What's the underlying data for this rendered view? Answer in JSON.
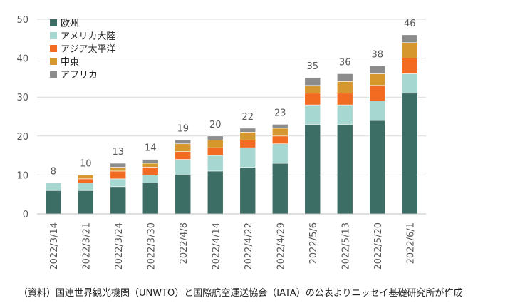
{
  "chart_data": {
    "type": "bar",
    "stacked": true,
    "title": "",
    "xlabel": "",
    "ylabel": "",
    "ylim": [
      0,
      50
    ],
    "yticks": [
      0,
      10,
      20,
      30,
      40,
      50
    ],
    "grid": true,
    "legend_position": "top-left",
    "categories": [
      "2022/3/14",
      "2022/3/21",
      "2022/3/24",
      "2022/3/30",
      "2022/4/8",
      "2022/4/14",
      "2022/4/22",
      "2022/4/29",
      "2022/5/6",
      "2022/5/13",
      "2022/5/20",
      "2022/6/1"
    ],
    "totals": [
      8,
      10,
      13,
      14,
      19,
      20,
      22,
      23,
      35,
      36,
      38,
      46
    ],
    "series": [
      {
        "name": "欧州",
        "color": "#3c6e65",
        "values": [
          6,
          6,
          7,
          8,
          10,
          11,
          12,
          13,
          23,
          23,
          24,
          31
        ]
      },
      {
        "name": "アメリカ大陸",
        "color": "#a6d8d1",
        "values": [
          2,
          2,
          2,
          2,
          4,
          4,
          5,
          5,
          5,
          5,
          5,
          5
        ]
      },
      {
        "name": "アジア太平洋",
        "color": "#f36a21",
        "values": [
          0,
          1,
          2,
          2,
          2,
          2,
          2,
          2,
          3,
          3,
          4,
          4
        ]
      },
      {
        "name": "中東",
        "color": "#d6982e",
        "values": [
          0,
          1,
          1,
          1,
          2,
          2,
          2,
          2,
          2,
          3,
          3,
          4
        ]
      },
      {
        "name": "アフリカ",
        "color": "#8c8c8c",
        "values": [
          0,
          0,
          1,
          1,
          1,
          1,
          1,
          1,
          2,
          2,
          2,
          2
        ]
      }
    ]
  },
  "source_note": "（資料）国連世界観光機関（UNWTO）と国際航空運送協会（IATA）の公表よりニッセイ基礎研究所が作成"
}
